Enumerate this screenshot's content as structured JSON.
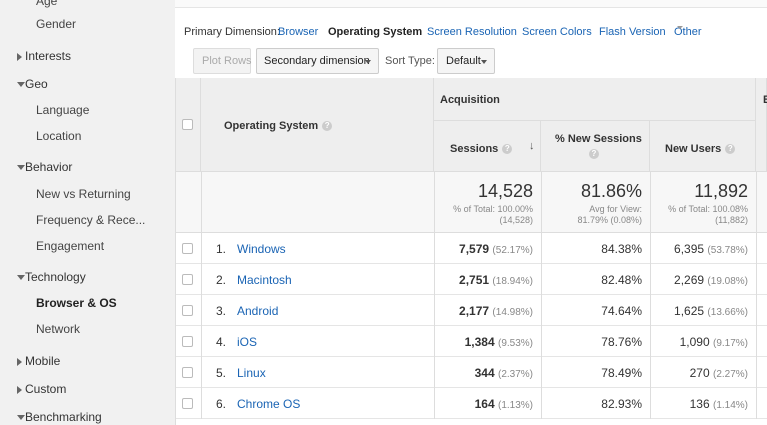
{
  "sidebar": {
    "items": [
      {
        "label": "Age",
        "type": "sub"
      },
      {
        "label": "Gender",
        "type": "sub"
      },
      {
        "label": "Interests",
        "type": "cat",
        "expanded": false
      },
      {
        "label": "Geo",
        "type": "cat",
        "expanded": true
      },
      {
        "label": "Language",
        "type": "sub"
      },
      {
        "label": "Location",
        "type": "sub"
      },
      {
        "label": "Behavior",
        "type": "cat",
        "expanded": true
      },
      {
        "label": "New vs Returning",
        "type": "sub"
      },
      {
        "label": "Frequency & Rece...",
        "type": "sub"
      },
      {
        "label": "Engagement",
        "type": "sub"
      },
      {
        "label": "Technology",
        "type": "cat",
        "expanded": true
      },
      {
        "label": "Browser & OS",
        "type": "sub",
        "active": true
      },
      {
        "label": "Network",
        "type": "sub"
      },
      {
        "label": "Mobile",
        "type": "cat",
        "expanded": false
      },
      {
        "label": "Custom",
        "type": "cat",
        "expanded": false
      },
      {
        "label": "Benchmarking",
        "type": "cat",
        "expanded": true
      }
    ]
  },
  "dimensions": {
    "label": "Primary Dimension:",
    "items": [
      "Browser",
      "Operating System",
      "Screen Resolution",
      "Screen Colors",
      "Flash Version",
      "Other"
    ],
    "active": "Operating System"
  },
  "toolbar": {
    "plot_rows": "Plot Rows",
    "secondary_dimension": "Secondary dimension",
    "sort_label": "Sort Type:",
    "sort_value": "Default"
  },
  "table": {
    "dimension_header": "Operating System",
    "group_header": "Acquisition",
    "next_group_initial": "B",
    "columns": [
      "Sessions",
      "% New Sessions",
      "New Users"
    ],
    "totals": {
      "sessions": {
        "value": "14,528",
        "sub1": "% of Total: 100.00%",
        "sub2": "(14,528)"
      },
      "new_sessions": {
        "value": "81.86%",
        "sub1": "Avg for View:",
        "sub2": "81.79% (0.08%)"
      },
      "new_users": {
        "value": "11,892",
        "sub1": "% of Total: 100.08%",
        "sub2": "(11,882)"
      }
    },
    "rows": [
      {
        "index": "1.",
        "name": "Windows",
        "sessions": "7,579",
        "sessions_pct": "(52.17%)",
        "new_sessions": "84.38%",
        "new_users": "6,395",
        "new_users_pct": "(53.78%)"
      },
      {
        "index": "2.",
        "name": "Macintosh",
        "sessions": "2,751",
        "sessions_pct": "(18.94%)",
        "new_sessions": "82.48%",
        "new_users": "2,269",
        "new_users_pct": "(19.08%)"
      },
      {
        "index": "3.",
        "name": "Android",
        "sessions": "2,177",
        "sessions_pct": "(14.98%)",
        "new_sessions": "74.64%",
        "new_users": "1,625",
        "new_users_pct": "(13.66%)"
      },
      {
        "index": "4.",
        "name": "iOS",
        "sessions": "1,384",
        "sessions_pct": "(9.53%)",
        "new_sessions": "78.76%",
        "new_users": "1,090",
        "new_users_pct": "(9.17%)"
      },
      {
        "index": "5.",
        "name": "Linux",
        "sessions": "344",
        "sessions_pct": "(2.37%)",
        "new_sessions": "78.49%",
        "new_users": "270",
        "new_users_pct": "(2.27%)"
      },
      {
        "index": "6.",
        "name": "Chrome OS",
        "sessions": "164",
        "sessions_pct": "(1.13%)",
        "new_sessions": "82.93%",
        "new_users": "136",
        "new_users_pct": "(1.14%)"
      }
    ]
  },
  "colors": {
    "link": "#1a64b4",
    "header_bg": "#eeeeee",
    "sidebar_bg": "#f1f1f1"
  }
}
